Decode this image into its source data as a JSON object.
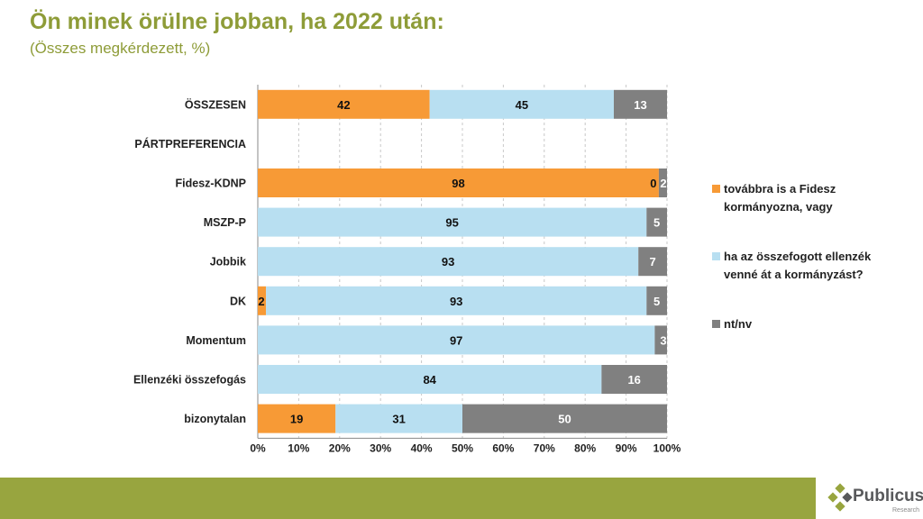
{
  "title": "Ön minek örülne jobban, ha 2022 után:",
  "subtitle": "(Összes megkérdezett, %)",
  "logo": {
    "name": "Publicus",
    "sub": "Research"
  },
  "chart_data": {
    "type": "bar",
    "orientation": "horizontal",
    "stacked": "percent",
    "categories": [
      "ÖSSZESEN",
      "PÁRTPREFERENCIA",
      "Fidesz-KDNP",
      "MSZP-P",
      "Jobbik",
      "DK",
      "Momentum",
      "Ellenzéki összefogás",
      "bizonytalan"
    ],
    "series": [
      {
        "name": "továbbra is a Fidesz kormányozna, vagy",
        "color": "#F79A36",
        "values": [
          42,
          null,
          98,
          null,
          null,
          2,
          null,
          null,
          19
        ]
      },
      {
        "name": "ha az összefogott ellenzék venné át a kormányzást?",
        "color": "#B8DFF1",
        "values": [
          45,
          null,
          0,
          95,
          93,
          93,
          97,
          84,
          31
        ]
      },
      {
        "name": "nt/nv",
        "color": "#808080",
        "values": [
          13,
          null,
          2,
          5,
          7,
          5,
          3,
          16,
          50
        ]
      }
    ],
    "xticks": [
      "0%",
      "10%",
      "20%",
      "30%",
      "40%",
      "50%",
      "60%",
      "70%",
      "80%",
      "90%",
      "100%"
    ],
    "xlim": [
      0,
      100
    ],
    "grid": "vertical dashed",
    "legend": "right"
  }
}
